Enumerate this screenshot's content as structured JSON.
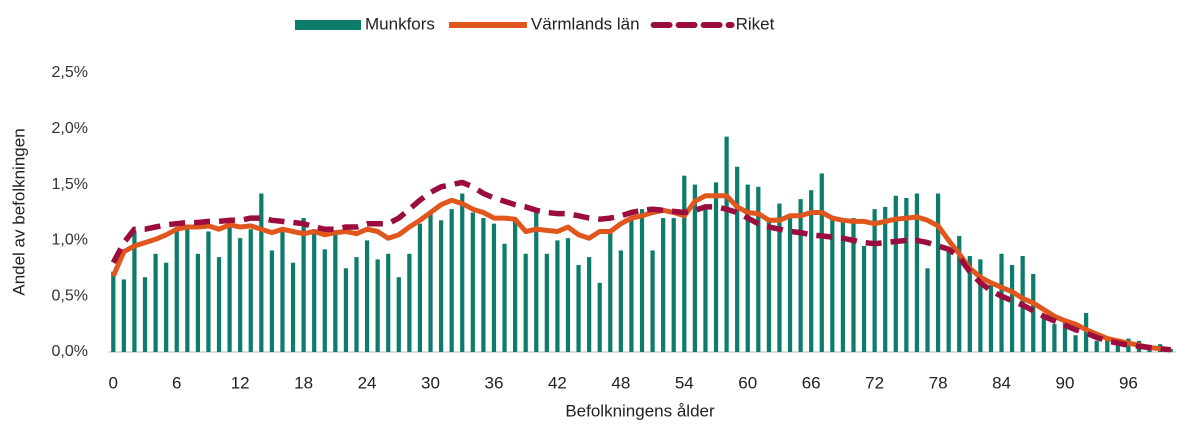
{
  "chart_data": {
    "type": "bar_line",
    "x_label": "Befolkningens ålder",
    "y_label": "Andel av befolkningen",
    "categories": [
      "0",
      null,
      null,
      null,
      null,
      null,
      "6",
      null,
      null,
      null,
      null,
      null,
      "12",
      null,
      null,
      null,
      null,
      null,
      "18",
      null,
      null,
      null,
      null,
      null,
      "24",
      null,
      null,
      null,
      null,
      null,
      "30",
      null,
      null,
      null,
      null,
      null,
      "36",
      null,
      null,
      null,
      null,
      null,
      "42",
      null,
      null,
      null,
      null,
      null,
      "48",
      null,
      null,
      null,
      null,
      null,
      "54",
      null,
      null,
      null,
      null,
      null,
      "60",
      null,
      null,
      null,
      null,
      null,
      "66",
      null,
      null,
      null,
      null,
      null,
      "72",
      null,
      null,
      null,
      null,
      null,
      "78",
      null,
      null,
      null,
      null,
      null,
      "84",
      null,
      null,
      null,
      null,
      null,
      "90",
      null,
      null,
      null,
      null,
      null,
      "96",
      null,
      null,
      null,
      null
    ],
    "ylim": [
      0,
      2.5
    ],
    "yticks": [
      {
        "value": 0,
        "label": "0,0%"
      },
      {
        "value": 0.5,
        "label": "0,5%"
      },
      {
        "value": 1,
        "label": "1,0%"
      },
      {
        "value": 1.5,
        "label": "1,5%"
      },
      {
        "value": 2,
        "label": "2,0%"
      },
      {
        "value": 2.5,
        "label": "2,5%"
      }
    ],
    "grid": false,
    "legend": "top",
    "series": [
      {
        "name": "Munkfors",
        "type": "bar",
        "color": "#0e7c6b",
        "values": [
          0.72,
          0.65,
          1.08,
          0.67,
          0.88,
          0.8,
          1.12,
          1.1,
          0.88,
          1.08,
          0.85,
          1.12,
          1.02,
          1.1,
          1.42,
          0.91,
          1.08,
          0.8,
          1.2,
          1.1,
          0.92,
          1.05,
          0.75,
          0.85,
          1.0,
          0.83,
          0.88,
          0.67,
          0.88,
          1.15,
          1.25,
          1.18,
          1.28,
          1.42,
          1.25,
          1.2,
          1.15,
          0.97,
          1.2,
          0.88,
          1.25,
          0.88,
          1.0,
          1.02,
          0.78,
          0.85,
          0.62,
          1.1,
          0.91,
          1.2,
          1.28,
          0.91,
          1.2,
          1.2,
          1.58,
          1.5,
          1.28,
          1.52,
          1.93,
          1.66,
          1.5,
          1.48,
          1.2,
          1.33,
          1.2,
          1.37,
          1.45,
          1.6,
          1.22,
          1.2,
          1.2,
          0.95,
          1.28,
          1.3,
          1.4,
          1.38,
          1.42,
          0.75,
          1.42,
          0.9,
          1.04,
          0.86,
          0.83,
          0.6,
          0.88,
          0.78,
          0.86,
          0.7,
          0.32,
          0.25,
          0.3,
          0.15,
          0.35,
          0.1,
          0.12,
          0.08,
          0.12,
          0.1,
          0.05,
          0.07,
          0.03
        ]
      },
      {
        "name": "Värmlands län",
        "type": "line",
        "line_style": "solid",
        "color": "#e0561c",
        "values": [
          0.68,
          0.9,
          0.95,
          0.98,
          1.01,
          1.05,
          1.1,
          1.12,
          1.12,
          1.13,
          1.1,
          1.14,
          1.12,
          1.13,
          1.1,
          1.07,
          1.1,
          1.08,
          1.06,
          1.08,
          1.05,
          1.07,
          1.08,
          1.06,
          1.1,
          1.08,
          1.02,
          1.05,
          1.12,
          1.18,
          1.25,
          1.32,
          1.36,
          1.33,
          1.28,
          1.25,
          1.2,
          1.2,
          1.19,
          1.08,
          1.1,
          1.09,
          1.08,
          1.12,
          1.05,
          1.02,
          1.08,
          1.08,
          1.15,
          1.2,
          1.22,
          1.25,
          1.27,
          1.25,
          1.22,
          1.35,
          1.4,
          1.4,
          1.4,
          1.3,
          1.25,
          1.24,
          1.18,
          1.18,
          1.22,
          1.22,
          1.25,
          1.25,
          1.2,
          1.18,
          1.17,
          1.17,
          1.15,
          1.17,
          1.19,
          1.2,
          1.21,
          1.18,
          1.13,
          1.0,
          0.88,
          0.75,
          0.67,
          0.62,
          0.58,
          0.54,
          0.48,
          0.44,
          0.38,
          0.32,
          0.28,
          0.25,
          0.2,
          0.16,
          0.12,
          0.1,
          0.08,
          0.06,
          0.04,
          0.03,
          0.02
        ]
      },
      {
        "name": "Riket",
        "type": "line",
        "line_style": "dashed",
        "color": "#9b0d3e",
        "values": [
          0.8,
          0.98,
          1.1,
          1.1,
          1.12,
          1.14,
          1.15,
          1.16,
          1.16,
          1.17,
          1.17,
          1.18,
          1.18,
          1.2,
          1.2,
          1.18,
          1.17,
          1.16,
          1.15,
          1.12,
          1.1,
          1.1,
          1.12,
          1.12,
          1.15,
          1.15,
          1.15,
          1.2,
          1.28,
          1.36,
          1.43,
          1.48,
          1.5,
          1.52,
          1.48,
          1.42,
          1.38,
          1.35,
          1.32,
          1.3,
          1.27,
          1.25,
          1.24,
          1.24,
          1.22,
          1.2,
          1.19,
          1.2,
          1.22,
          1.25,
          1.27,
          1.28,
          1.27,
          1.26,
          1.25,
          1.27,
          1.3,
          1.3,
          1.28,
          1.25,
          1.2,
          1.15,
          1.12,
          1.1,
          1.08,
          1.07,
          1.05,
          1.04,
          1.03,
          1.02,
          1.0,
          0.98,
          0.97,
          0.98,
          0.99,
          1.0,
          1.0,
          0.98,
          0.95,
          0.92,
          0.85,
          0.72,
          0.62,
          0.55,
          0.5,
          0.46,
          0.42,
          0.37,
          0.32,
          0.28,
          0.24,
          0.2,
          0.17,
          0.13,
          0.1,
          0.08,
          0.06,
          0.05,
          0.04,
          0.03,
          0.02
        ]
      }
    ]
  }
}
